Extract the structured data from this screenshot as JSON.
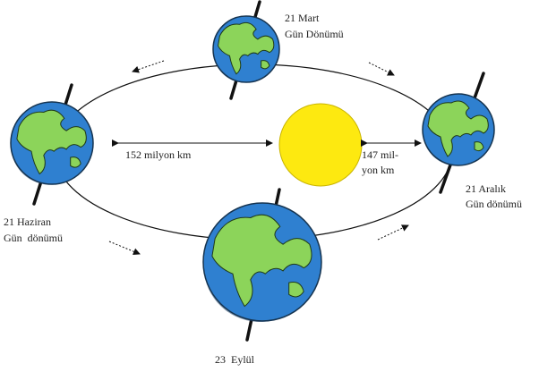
{
  "labels": {
    "march": [
      "21 Mart",
      "Gün Dönümü"
    ],
    "distance_far": "152 milyon km",
    "distance_near": [
      "147 mil-",
      "yon km"
    ],
    "december": [
      "21 Aralık",
      "Gün dönümü"
    ],
    "june": [
      "21 Haziran",
      "Gün  dönümü"
    ],
    "september": "23  Eylül"
  }
}
